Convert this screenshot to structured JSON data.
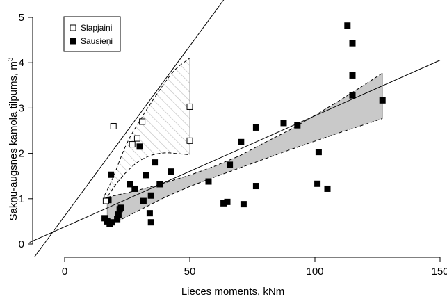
{
  "chart_data": {
    "type": "scatter",
    "xlabel": "Lieces moments, kNm",
    "ylabel": "Sakņu-augsnes kamola tilpums, m",
    "ylabel_superscript": "3",
    "xlim": [
      -14,
      150
    ],
    "ylim": [
      0,
      5.1
    ],
    "x_ticks": [
      0,
      50,
      100,
      150
    ],
    "y_ticks": [
      0,
      1,
      2,
      3,
      4,
      5
    ],
    "grid": false,
    "legend_position": "top-left",
    "series": [
      {
        "name": "Slapjaiņi",
        "marker": "open-square",
        "points": [
          [
            16.5,
            0.95
          ],
          [
            19.5,
            2.6
          ],
          [
            27.0,
            2.2
          ],
          [
            29.0,
            2.33
          ],
          [
            31.0,
            2.7
          ],
          [
            50.0,
            3.03
          ],
          [
            50.0,
            2.28
          ]
        ],
        "fit": {
          "intercept": 0.62,
          "slope": 0.075,
          "x_range": [
            -14,
            105
          ]
        },
        "band": {
          "x": [
            16,
            18,
            20,
            22,
            24,
            26,
            28,
            30,
            32,
            34,
            36,
            38,
            40,
            42,
            44,
            46,
            48,
            50
          ],
          "lower": [
            0.95,
            1.12,
            1.28,
            1.42,
            1.55,
            1.66,
            1.76,
            1.84,
            1.9,
            1.95,
            1.98,
            2.0,
            2.01,
            2.01,
            2.0,
            1.99,
            1.98,
            1.97
          ],
          "upper": [
            1.08,
            1.3,
            1.55,
            1.85,
            2.12,
            2.35,
            2.54,
            2.72,
            2.9,
            3.07,
            3.24,
            3.4,
            3.56,
            3.71,
            3.84,
            3.94,
            4.02,
            4.1
          ]
        }
      },
      {
        "name": "Sausieņi",
        "marker": "filled-square",
        "points": [
          [
            16.0,
            0.57
          ],
          [
            17.0,
            0.5
          ],
          [
            17.5,
            0.97
          ],
          [
            18.0,
            0.45
          ],
          [
            18.5,
            1.53
          ],
          [
            19.0,
            0.48
          ],
          [
            21.0,
            0.55
          ],
          [
            21.5,
            0.65
          ],
          [
            22.0,
            0.77
          ],
          [
            22.5,
            0.8
          ],
          [
            26.0,
            1.32
          ],
          [
            28.0,
            1.22
          ],
          [
            30.0,
            2.15
          ],
          [
            31.5,
            0.95
          ],
          [
            32.5,
            1.52
          ],
          [
            34.0,
            0.68
          ],
          [
            34.5,
            1.07
          ],
          [
            34.5,
            0.48
          ],
          [
            36.0,
            1.8
          ],
          [
            38.0,
            1.32
          ],
          [
            42.5,
            1.6
          ],
          [
            57.5,
            1.38
          ],
          [
            63.5,
            0.9
          ],
          [
            65.0,
            0.93
          ],
          [
            66.0,
            1.75
          ],
          [
            70.5,
            2.25
          ],
          [
            71.5,
            0.88
          ],
          [
            76.5,
            2.57
          ],
          [
            76.5,
            1.28
          ],
          [
            87.5,
            2.67
          ],
          [
            93.0,
            2.62
          ],
          [
            101.0,
            1.33
          ],
          [
            101.5,
            2.03
          ],
          [
            105.0,
            1.22
          ],
          [
            113.0,
            4.82
          ],
          [
            115.0,
            3.72
          ],
          [
            115.0,
            4.43
          ],
          [
            115.0,
            3.28
          ],
          [
            127.0,
            3.17
          ]
        ],
        "fit": {
          "intercept": 0.38,
          "slope": 0.0245,
          "x_range": [
            -14,
            150
          ]
        },
        "band": {
          "x": [
            17,
            20,
            25,
            30,
            35,
            40,
            50,
            60,
            70,
            80,
            90,
            100,
            110,
            120,
            127
          ],
          "lower": [
            0.38,
            0.47,
            0.61,
            0.75,
            0.89,
            1.03,
            1.27,
            1.48,
            1.68,
            1.88,
            2.08,
            2.27,
            2.46,
            2.64,
            2.77
          ],
          "upper": [
            1.03,
            1.07,
            1.13,
            1.2,
            1.27,
            1.35,
            1.52,
            1.72,
            1.95,
            2.24,
            2.52,
            2.84,
            3.17,
            3.52,
            3.77
          ]
        }
      }
    ]
  }
}
